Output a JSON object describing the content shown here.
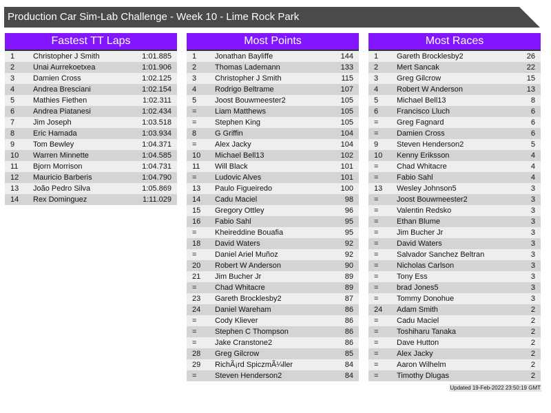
{
  "title": "Production Car Sim-Lab Challenge - Week 10 - Lime Rock Park",
  "panels": [
    {
      "heading": "Fastest TT Laps",
      "rows": [
        [
          "1",
          "Christopher J Smith",
          "1:01.885"
        ],
        [
          "2",
          "Unai Aurrekoetxea",
          "1:01.906"
        ],
        [
          "3",
          "Damien Cross",
          "1:02.125"
        ],
        [
          "4",
          "Andrea Bresciani",
          "1:02.154"
        ],
        [
          "5",
          "Mathies Fiethen",
          "1:02.311"
        ],
        [
          "6",
          "Andrea Piatanesi",
          "1:02.434"
        ],
        [
          "7",
          "Jim Joseph",
          "1:03.518"
        ],
        [
          "8",
          "Eric Hamada",
          "1:03.934"
        ],
        [
          "9",
          "Tom Bewley",
          "1:04.371"
        ],
        [
          "10",
          "Warren Minnette",
          "1:04.585"
        ],
        [
          "11",
          "Bjorn Morrison",
          "1:04.731"
        ],
        [
          "12",
          "Mauricio Barberis",
          "1:04.790"
        ],
        [
          "13",
          "João Pedro Silva",
          "1:05.869"
        ],
        [
          "14",
          "Rex Dominguez",
          "1:11.029"
        ]
      ]
    },
    {
      "heading": "Most Points",
      "rows": [
        [
          "1",
          "Jonathan Bayliffe",
          "144"
        ],
        [
          "2",
          "Thomas Lademann",
          "133"
        ],
        [
          "3",
          "Christopher J Smith",
          "115"
        ],
        [
          "4",
          "Rodrigo Beltrame",
          "107"
        ],
        [
          "5",
          "Joost Bouwmeester2",
          "105"
        ],
        [
          "=",
          "Liam Matthews",
          "105"
        ],
        [
          "=",
          "Stephen King",
          "105"
        ],
        [
          "8",
          "G Griffin",
          "104"
        ],
        [
          "=",
          "Alex Jacky",
          "104"
        ],
        [
          "10",
          "Michael Bell13",
          "102"
        ],
        [
          "11",
          "Will Black",
          "101"
        ],
        [
          "=",
          "Ludovic Alves",
          "101"
        ],
        [
          "13",
          "Paulo Figueiredo",
          "100"
        ],
        [
          "14",
          "Cadu Maciel",
          "98"
        ],
        [
          "15",
          "Gregory Ottley",
          "96"
        ],
        [
          "16",
          "Fabio Sahl",
          "95"
        ],
        [
          "=",
          "Kheireddine Bouafia",
          "95"
        ],
        [
          "18",
          "David Waters",
          "92"
        ],
        [
          "=",
          "Daniel Ariel Muñoz",
          "92"
        ],
        [
          "20",
          "Robert W Anderson",
          "90"
        ],
        [
          "21",
          "Jim Bucher Jr",
          "89"
        ],
        [
          "=",
          "Chad Whitacre",
          "89"
        ],
        [
          "23",
          "Gareth Brocklesby2",
          "87"
        ],
        [
          "24",
          "Daniel Wareham",
          "86"
        ],
        [
          "=",
          "Cody Kliever",
          "86"
        ],
        [
          "=",
          "Stephen C Thompson",
          "86"
        ],
        [
          "=",
          "Jake Cranstone2",
          "86"
        ],
        [
          "28",
          "Greg Gilcrow",
          "85"
        ],
        [
          "29",
          "RichÃ¡rd SpiczmÃ¼ller",
          "84"
        ],
        [
          "=",
          "Steven Henderson2",
          "84"
        ]
      ]
    },
    {
      "heading": "Most Races",
      "rows": [
        [
          "1",
          "Gareth Brocklesby2",
          "26"
        ],
        [
          "2",
          "Mert Sancak",
          "22"
        ],
        [
          "3",
          "Greg Gilcrow",
          "15"
        ],
        [
          "4",
          "Robert W Anderson",
          "13"
        ],
        [
          "5",
          "Michael Bell13",
          "8"
        ],
        [
          "6",
          "Francisco Lluch",
          "6"
        ],
        [
          "=",
          "Greg Fagnard",
          "6"
        ],
        [
          "=",
          "Damien Cross",
          "6"
        ],
        [
          "9",
          "Steven Henderson2",
          "5"
        ],
        [
          "10",
          "Kenny Eriksson",
          "4"
        ],
        [
          "=",
          "Chad Whitacre",
          "4"
        ],
        [
          "=",
          "Fabio Sahl",
          "4"
        ],
        [
          "13",
          "Wesley Johnson5",
          "3"
        ],
        [
          "=",
          "Joost Bouwmeester2",
          "3"
        ],
        [
          "=",
          "Valentin Redsko",
          "3"
        ],
        [
          "=",
          "Ethan Blume",
          "3"
        ],
        [
          "=",
          "Jim Bucher Jr",
          "3"
        ],
        [
          "=",
          "David Waters",
          "3"
        ],
        [
          "=",
          "Salvador Sanchez Beltran",
          "3"
        ],
        [
          "=",
          "Nicholas Carlson",
          "3"
        ],
        [
          "=",
          "Tony Ess",
          "3"
        ],
        [
          "=",
          "brad Jones5",
          "3"
        ],
        [
          "=",
          "Tommy Donohue",
          "3"
        ],
        [
          "24",
          "Adam Smith",
          "2"
        ],
        [
          "=",
          "Cadu Maciel",
          "2"
        ],
        [
          "=",
          "Toshiharu Tanaka",
          "2"
        ],
        [
          "=",
          "Dave Hutton",
          "2"
        ],
        [
          "=",
          "Alex Jacky",
          "2"
        ],
        [
          "=",
          "Aaron Wilhelm",
          "2"
        ],
        [
          "=",
          "Timothy Dlugas",
          "2"
        ]
      ]
    }
  ],
  "footer": "Updated 19-Feb-2022 23:50:19 GMT",
  "colors": {
    "header": "#8217ff",
    "title_bar": "#4a4a4a"
  }
}
